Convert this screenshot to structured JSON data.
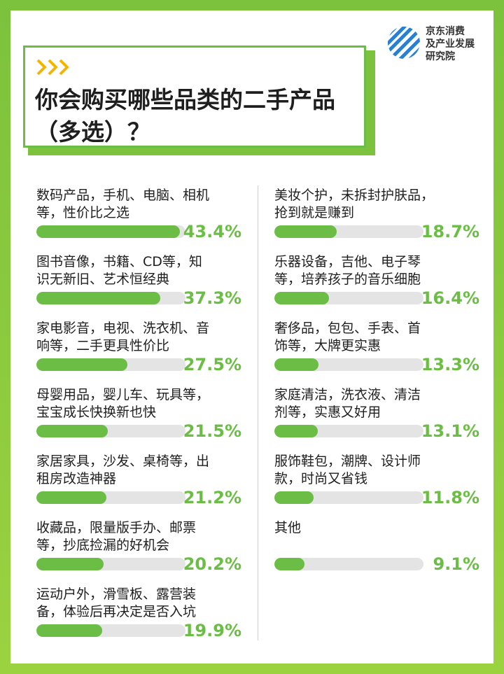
{
  "chart_data": {
    "type": "bar",
    "title": "你会购买哪些品类的二手产品（多选）？",
    "logo": [
      "京东消费",
      "及产业发展",
      "研究院"
    ],
    "categories": [
      [
        "数码产品，手机、电脑、相机",
        "等，性价比之选"
      ],
      [
        "图书音像，书籍、CD等，知",
        "识无新旧、艺术恒经典"
      ],
      [
        "家电影音，电视、洗衣机、音",
        "响等，二手更具性价比"
      ],
      [
        "母婴用品，婴儿车、玩具等，",
        "宝宝成长快换新也快"
      ],
      [
        "家居家具，沙发、桌椅等，出",
        "租房改造神器"
      ],
      [
        "收藏品，限量版手办、邮票",
        "等，抄底捡漏的好机会"
      ],
      [
        "运动户外，滑雪板、露营装",
        "备，体验后再决定是否入坑"
      ],
      [
        "美妆个护，未拆封护肤品，",
        "抢到就是赚到"
      ],
      [
        "乐器设备，吉他、电子琴",
        "等，培养孩子的音乐细胞"
      ],
      [
        "奢侈品，包包、手表、首",
        "饰等，大牌更实惠"
      ],
      [
        "家庭清洁，洗衣液、清洁",
        "剂等，实惠又好用"
      ],
      [
        "服饰鞋包，潮牌、设计师",
        "款，时尚又省钱"
      ],
      [
        "其他"
      ]
    ],
    "values": [
      43.4,
      37.3,
      27.5,
      21.5,
      21.2,
      20.2,
      19.9,
      18.7,
      16.4,
      13.3,
      13.1,
      11.8,
      9.1
    ],
    "value_labels": [
      "43.4%",
      "37.3%",
      "27.5%",
      "21.5%",
      "21.2%",
      "20.2%",
      "19.9%",
      "18.7%",
      "16.4%",
      "13.3%",
      "13.1%",
      "11.8%",
      "9.1%"
    ],
    "xlim": [
      0,
      45
    ],
    "color": "#6cbd45"
  }
}
